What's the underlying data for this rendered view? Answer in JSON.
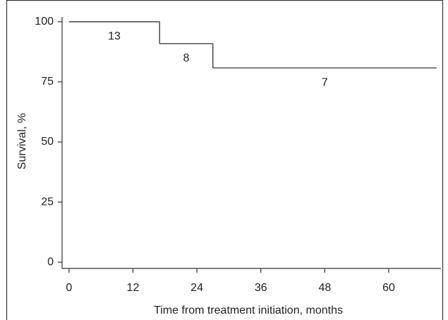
{
  "chart_data": {
    "type": "step",
    "x": [
      0,
      17,
      27,
      69
    ],
    "values": [
      100,
      90.9,
      80.8,
      80.8
    ],
    "color": "#333333",
    "annotations": [
      "13",
      "8",
      "7"
    ],
    "xlabel": "Time from treatment initiation, months",
    "ylabel": "Survival, %",
    "xlim": [
      -1.3,
      69.8
    ],
    "xticks": [
      0,
      12,
      24,
      36,
      48,
      60
    ],
    "ylim": [
      -2.6,
      102
    ],
    "yticks": [
      0,
      25,
      50,
      75,
      100
    ],
    "grid": false
  }
}
